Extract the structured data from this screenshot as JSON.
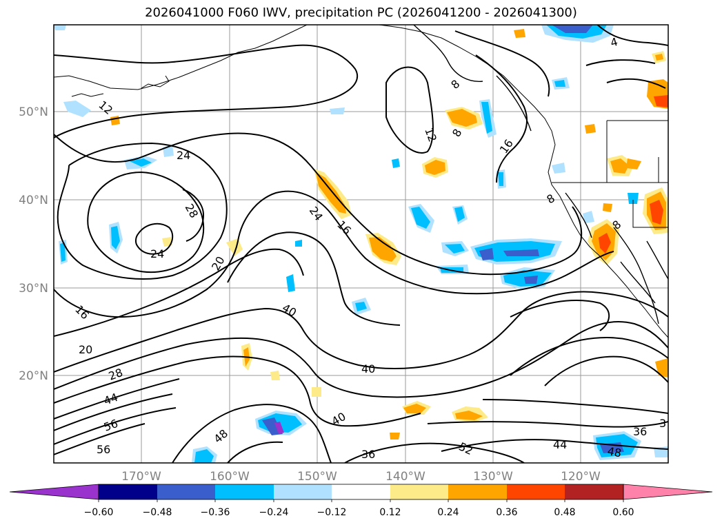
{
  "title": "2026041000 F060 IWV, precipitation PC (2026041200 - 2026041300)",
  "map": {
    "lon_labels": [
      "170°W",
      "160°W",
      "150°W",
      "140°W",
      "130°W",
      "120°W"
    ],
    "lat_labels": [
      "50°N",
      "40°N",
      "30°N",
      "20°N"
    ],
    "contour_labels": [
      "4",
      "8",
      "12",
      "8",
      "16",
      "12",
      "24",
      "28",
      "24",
      "20",
      "24",
      "16",
      "16",
      "40",
      "20",
      "28",
      "44",
      "56",
      "56",
      "48",
      "40",
      "40",
      "36",
      "52",
      "44",
      "48",
      "36",
      "3",
      "8",
      "8"
    ]
  },
  "colorbar": {
    "ticks": [
      "−0.60",
      "−0.48",
      "−0.36",
      "−0.24",
      "−0.12",
      "0.12",
      "0.24",
      "0.36",
      "0.48",
      "0.60"
    ],
    "colors": [
      "#9a32cd",
      "#00008b",
      "#3a5fcd",
      "#00bfff",
      "#b0e2ff",
      "#ffffff",
      "#fdeb8a",
      "#ffa500",
      "#ff4500",
      "#b22222",
      "#ff82ab"
    ]
  }
}
